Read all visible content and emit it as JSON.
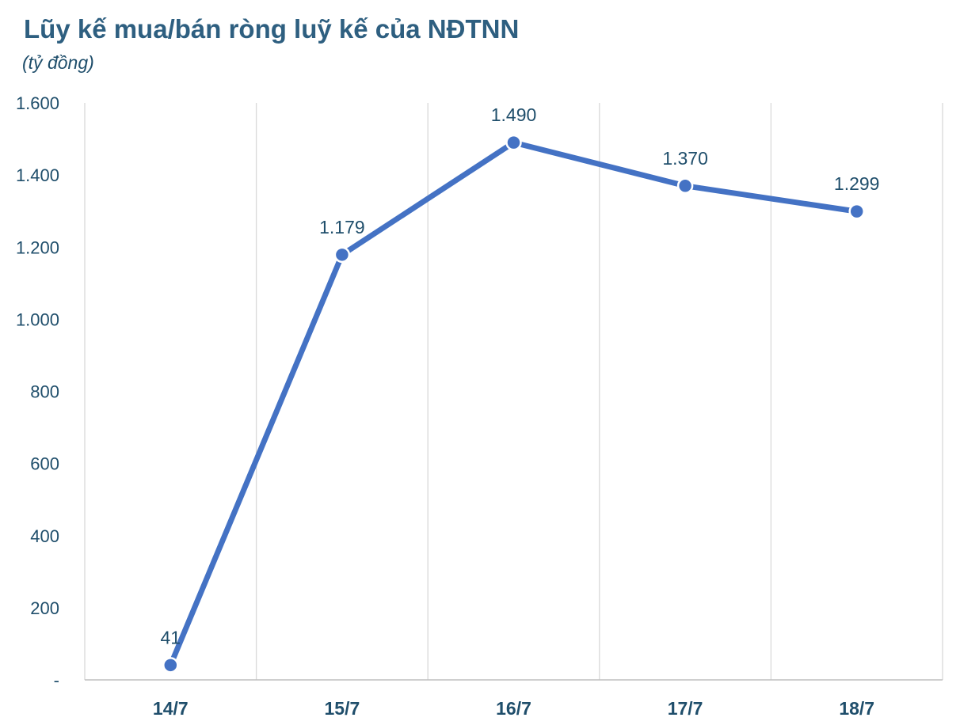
{
  "header": {
    "title": "Lũy kế mua/bán ròng luỹ kế của NĐTNN",
    "subtitle": "(tỷ đồng)"
  },
  "colors": {
    "line": "#4472c4",
    "text": "#1f4e6b",
    "title": "#2e5f80",
    "grid": "#d9d9d9",
    "axis": "#bfbfbf"
  },
  "chart_data": {
    "type": "line",
    "title": "Lũy kế mua/bán ròng luỹ kế của NĐTNN",
    "subtitle": "(tỷ đồng)",
    "categories": [
      "14/7",
      "15/7",
      "16/7",
      "17/7",
      "18/7"
    ],
    "series": [
      {
        "values": [
          41,
          1179,
          1490,
          1370,
          1299
        ],
        "labels": [
          "41",
          "1.179",
          "1.490",
          "1.370",
          "1.299"
        ],
        "color": "#4472c4"
      }
    ],
    "ylim": [
      0,
      1600
    ],
    "yticks": [
      0,
      200,
      400,
      600,
      800,
      1000,
      1200,
      1400,
      1600
    ],
    "ytick_labels": [
      "-",
      "200",
      "400",
      "600",
      "800",
      "1.000",
      "1.200",
      "1.400",
      "1.600"
    ],
    "grid": "vertical",
    "legend": "none"
  }
}
